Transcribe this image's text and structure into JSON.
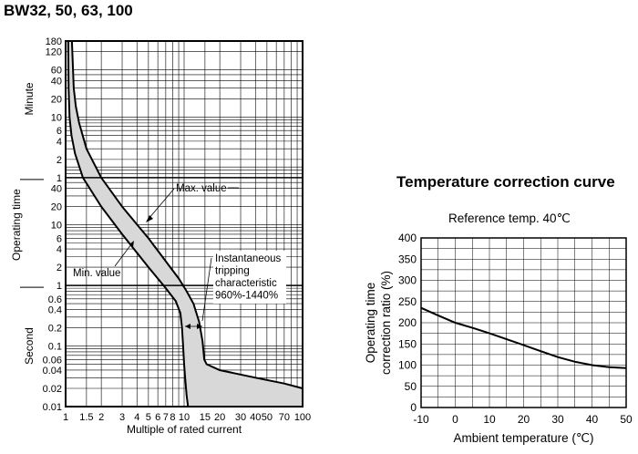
{
  "page": {
    "heading": "BW32, 50, 63, 100"
  },
  "chart_data": [
    {
      "type": "line",
      "title": "",
      "xlabel": "Multiple of rated current",
      "ylabel": "Operating time",
      "x_scale": "log",
      "y_scale": "log",
      "xlim": [
        1,
        100
      ],
      "ylim_seconds": [
        0.01,
        10800
      ],
      "x_ticks": [
        {
          "v": 1,
          "label": "1"
        },
        {
          "v": 1.5,
          "label": "1.5"
        },
        {
          "v": 2,
          "label": "2"
        },
        {
          "v": 3,
          "label": "3"
        },
        {
          "v": 4,
          "label": "4"
        },
        {
          "v": 5,
          "label": "5"
        },
        {
          "v": 6,
          "label": "6"
        },
        {
          "v": 7,
          "label": "7"
        },
        {
          "v": 8,
          "label": "8"
        },
        {
          "v": 10,
          "label": "10"
        },
        {
          "v": 15,
          "label": "15"
        },
        {
          "v": 20,
          "label": "20"
        },
        {
          "v": 30,
          "label": "30"
        },
        {
          "v": 40,
          "label": "40"
        },
        {
          "v": 50,
          "label": "50"
        },
        {
          "v": 70,
          "label": "70"
        },
        {
          "v": 100,
          "label": "100"
        }
      ],
      "y_ticks_minute": [
        {
          "s": 10800,
          "label": "180"
        },
        {
          "s": 7200,
          "label": "120"
        },
        {
          "s": 3600,
          "label": "60"
        },
        {
          "s": 2400,
          "label": "40"
        },
        {
          "s": 1200,
          "label": "20"
        },
        {
          "s": 600,
          "label": "10"
        },
        {
          "s": 360,
          "label": "6"
        },
        {
          "s": 240,
          "label": "4"
        },
        {
          "s": 120,
          "label": "2"
        },
        {
          "s": 60,
          "label": "1"
        }
      ],
      "y_ticks_second": [
        {
          "s": 40,
          "label": "40"
        },
        {
          "s": 20,
          "label": "20"
        },
        {
          "s": 10,
          "label": "10"
        },
        {
          "s": 6,
          "label": "6"
        },
        {
          "s": 4,
          "label": "4"
        },
        {
          "s": 2,
          "label": "2"
        },
        {
          "s": 1,
          "label": "1"
        },
        {
          "s": 0.6,
          "label": "0.6"
        },
        {
          "s": 0.4,
          "label": "0.4"
        },
        {
          "s": 0.2,
          "label": "0.2"
        },
        {
          "s": 0.1,
          "label": "0.1"
        },
        {
          "s": 0.06,
          "label": "0.06"
        },
        {
          "s": 0.04,
          "label": "0.04"
        },
        {
          "s": 0.02,
          "label": "0.02"
        },
        {
          "s": 0.01,
          "label": "0.01"
        }
      ],
      "y_section_labels": {
        "minute": "Minute",
        "second": "Second"
      },
      "series": [
        {
          "name": "Max. value",
          "points": [
            [
              1.13,
              10800
            ],
            [
              1.17,
              1800
            ],
            [
              1.22,
              900
            ],
            [
              1.3,
              480
            ],
            [
              1.5,
              180
            ],
            [
              2,
              60
            ],
            [
              3,
              20
            ],
            [
              5,
              6
            ],
            [
              7,
              2.5
            ],
            [
              9,
              1.3
            ],
            [
              10.5,
              0.8
            ],
            [
              12,
              0.5
            ],
            [
              13.4,
              0.25
            ],
            [
              14.3,
              0.12
            ],
            [
              14.8,
              0.06
            ],
            [
              15.5,
              0.05
            ],
            [
              20,
              0.04
            ],
            [
              40,
              0.03
            ],
            [
              70,
              0.024
            ],
            [
              100,
              0.02
            ]
          ]
        },
        {
          "name": "Min. value",
          "points": [
            [
              1.05,
              10800
            ],
            [
              1.06,
              1800
            ],
            [
              1.08,
              600
            ],
            [
              1.12,
              300
            ],
            [
              1.2,
              150
            ],
            [
              1.4,
              60
            ],
            [
              2,
              20
            ],
            [
              3,
              7
            ],
            [
              5,
              2
            ],
            [
              7,
              0.9
            ],
            [
              8.5,
              0.55
            ],
            [
              9.3,
              0.35
            ],
            [
              9.6,
              0.2
            ],
            [
              9.8,
              0.1
            ],
            [
              10,
              0.05
            ],
            [
              10.2,
              0.03
            ],
            [
              10.5,
              0.015
            ],
            [
              10.8,
              0.01
            ]
          ]
        }
      ],
      "annotations": {
        "max_label": "Max. value",
        "min_label": "Min. value",
        "inst_lines": [
          "Instantaneous",
          "tripping",
          "characteristic",
          "960%-1440%"
        ]
      },
      "band_fill": "#d8d8d8",
      "grid": true
    },
    {
      "type": "line",
      "title": "Temperature correction curve",
      "subtitle": "Reference temp. 40℃",
      "xlabel": "Ambient temperature (℃)",
      "ylabel_lines": [
        "Operating time",
        "correction ratio (%)"
      ],
      "xlim": [
        -10,
        50
      ],
      "ylim": [
        0,
        400
      ],
      "x_ticks": [
        -10,
        0,
        10,
        20,
        30,
        40,
        50
      ],
      "y_ticks": [
        0,
        50,
        100,
        150,
        200,
        250,
        300,
        350,
        400
      ],
      "grid": true,
      "series": [
        {
          "points": [
            [
              -10,
              235
            ],
            [
              -5,
              217
            ],
            [
              0,
              200
            ],
            [
              5,
              188
            ],
            [
              10,
              175
            ],
            [
              15,
              161
            ],
            [
              20,
              147
            ],
            [
              25,
              133
            ],
            [
              30,
              119
            ],
            [
              35,
              108
            ],
            [
              40,
              100
            ],
            [
              45,
              95
            ],
            [
              50,
              93
            ]
          ]
        }
      ]
    }
  ]
}
